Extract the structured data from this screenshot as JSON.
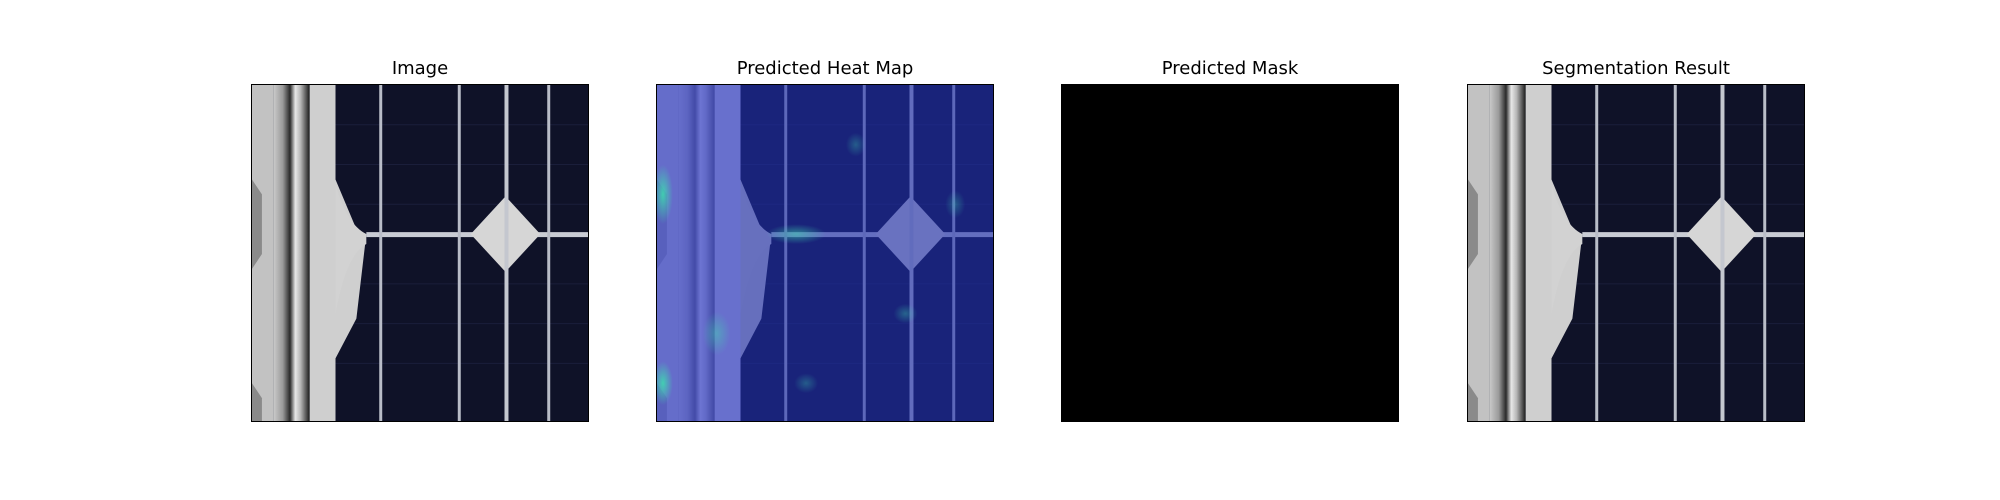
{
  "panels": [
    {
      "title": "Image",
      "icon": "solar-cell-photo"
    },
    {
      "title": "Predicted Heat Map",
      "icon": "heatmap-overlay"
    },
    {
      "title": "Predicted Mask",
      "icon": "binary-mask"
    },
    {
      "title": "Segmentation Result",
      "icon": "solar-cell-photo"
    }
  ],
  "colors": {
    "cell_background": "#0f1228",
    "finger_line": "#c9ccd4",
    "busbar": "#d4d6da",
    "heat_base": "#1f2fb0",
    "heat_hot": "#38c9a8",
    "mask": "#000000"
  }
}
